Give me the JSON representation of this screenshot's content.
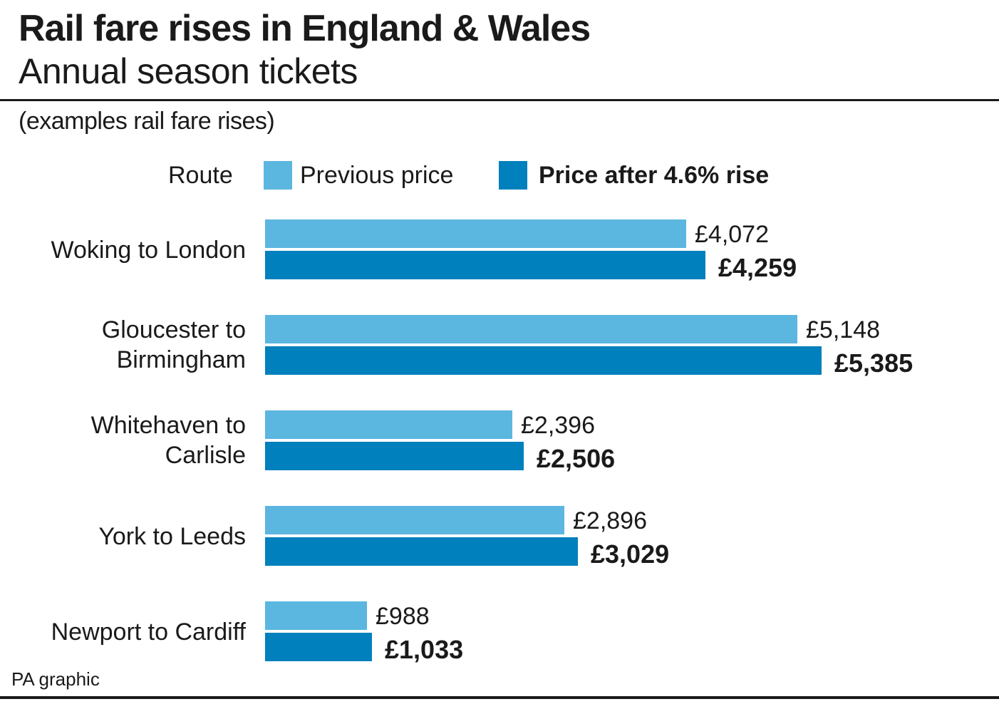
{
  "title": "Rail fare rises in England & Wales",
  "subtitle": "Annual season tickets",
  "note": "(examples rail fare rises)",
  "legend": {
    "route_label": "Route",
    "previous_label": "Previous price",
    "after_label": "Price after 4.6% rise"
  },
  "colors": {
    "previous": "#5bb6e0",
    "after": "#0080bc",
    "text": "#1a1a1a"
  },
  "chart_data": {
    "type": "bar",
    "orientation": "horizontal",
    "categories": [
      [
        "Woking to London"
      ],
      [
        "Gloucester to",
        "Birmingham"
      ],
      [
        "Whitehaven to",
        "Carlisle"
      ],
      [
        "York to Leeds"
      ],
      [
        "Newport to Cardiff"
      ]
    ],
    "series": [
      {
        "name": "Previous price",
        "values": [
          4072,
          5148,
          2396,
          2896,
          988
        ],
        "labels": [
          "£4,072",
          "£5,148",
          "£2,396",
          "£2,896",
          "£988"
        ]
      },
      {
        "name": "Price after 4.6% rise",
        "values": [
          4259,
          5385,
          2506,
          3029,
          1033
        ],
        "labels": [
          "£4,259",
          "£5,385",
          "£2,506",
          "£3,029",
          "£1,033"
        ]
      }
    ],
    "xlim": [
      0,
      5385
    ],
    "grid": false,
    "legend_position": "top"
  },
  "footer": "PA graphic"
}
